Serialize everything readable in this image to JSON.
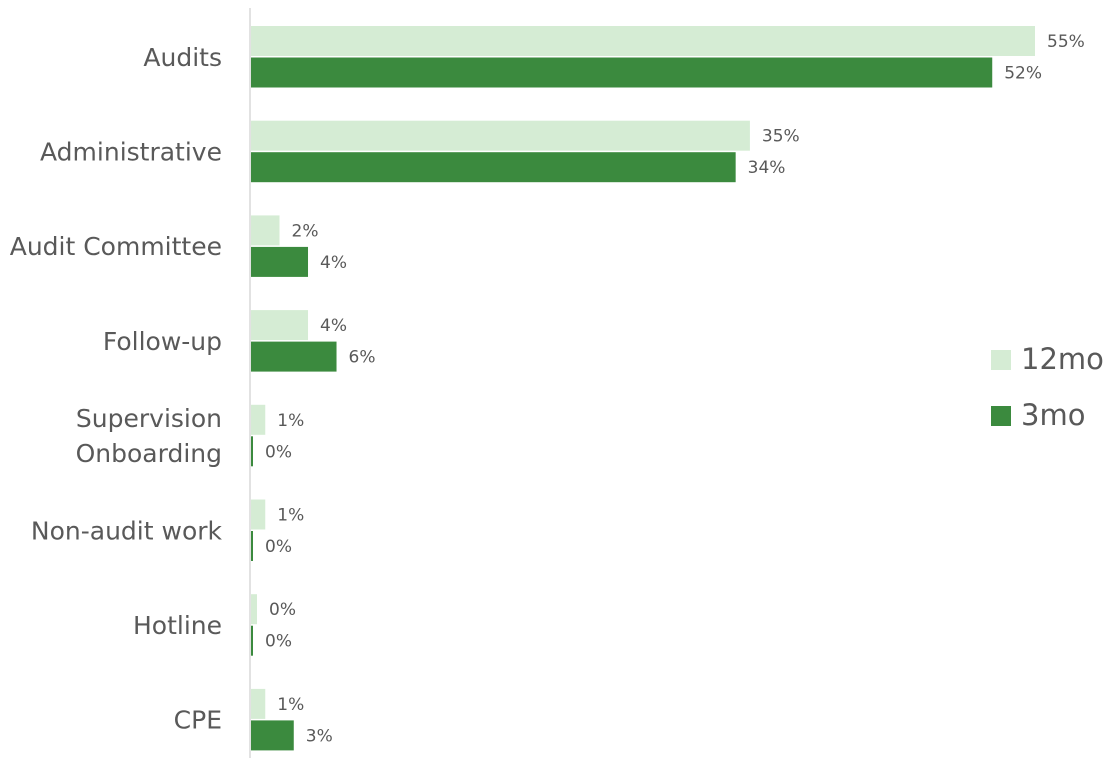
{
  "chart_data": {
    "type": "bar",
    "orientation": "horizontal",
    "categories": [
      [
        "Audits"
      ],
      [
        "Administrative"
      ],
      [
        "Audit Committee"
      ],
      [
        "Follow-up"
      ],
      [
        "Supervision",
        "Onboarding"
      ],
      [
        "Non-audit work"
      ],
      [
        "Hotline"
      ],
      [
        "CPE"
      ]
    ],
    "series": [
      {
        "name": "12mo",
        "color": "#d5ecd4",
        "values": [
          55,
          35,
          2,
          4,
          1,
          1,
          0,
          1
        ],
        "labels": [
          "55%",
          "35%",
          "2%",
          "4%",
          "1%",
          "1%",
          "0%",
          "1%"
        ]
      },
      {
        "name": "3mo",
        "color": "#3b8a3e",
        "values": [
          52,
          34,
          4,
          6,
          0,
          0,
          0,
          3
        ],
        "labels": [
          "52%",
          "34%",
          "4%",
          "6%",
          "0%",
          "0%",
          "0%",
          "3%"
        ]
      }
    ],
    "title": "",
    "xlabel": "",
    "ylabel": "",
    "xlim": [
      0,
      55
    ],
    "grid": false,
    "legend_position": "right"
  }
}
